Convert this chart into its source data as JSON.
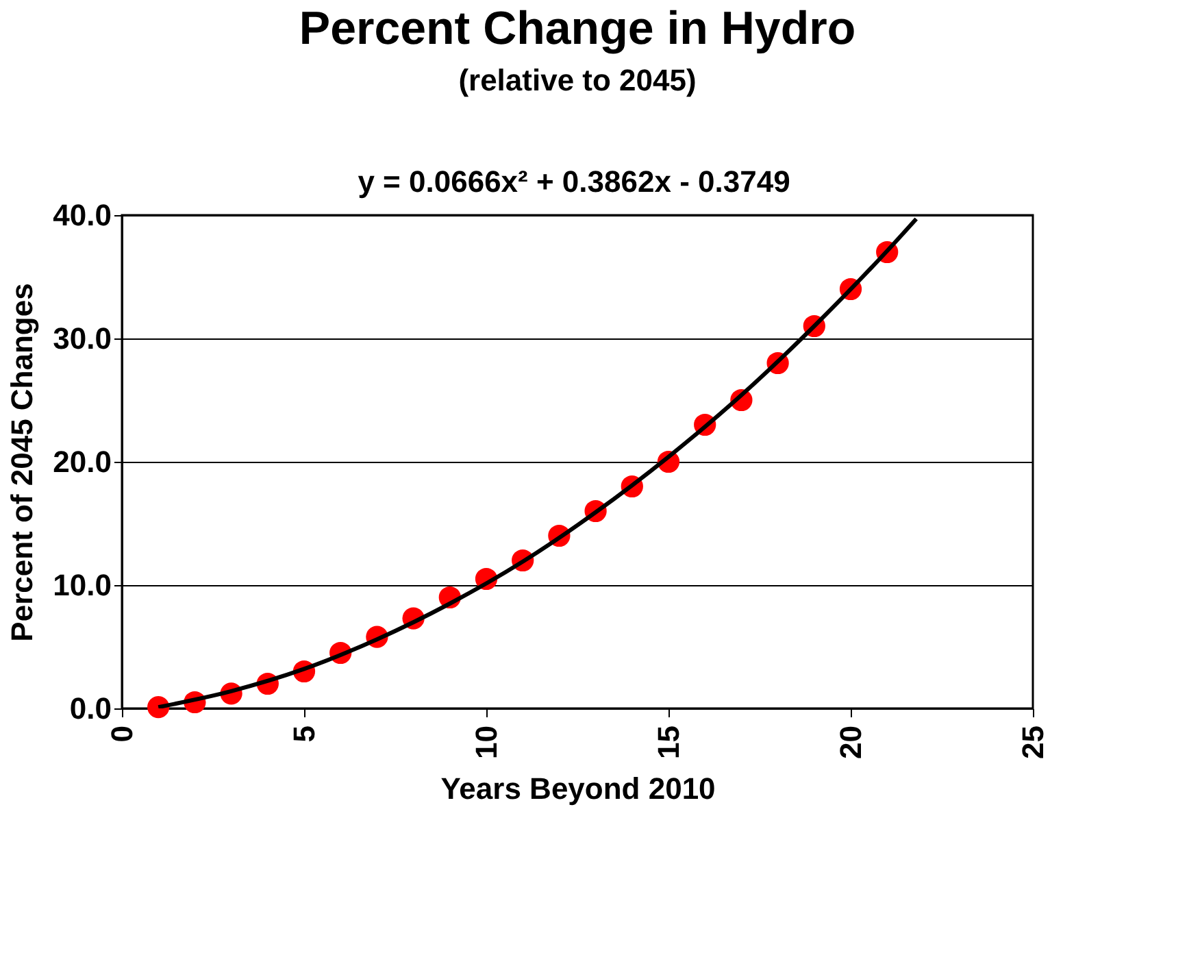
{
  "chart_data": {
    "type": "scatter",
    "title": "Percent Change in Hydro",
    "subtitle": "(relative to 2045)",
    "annotations": [
      "y = 0.0666x² + 0.3862x - 0.3749"
    ],
    "xlabel": "Years Beyond 2010",
    "ylabel": "Percent of 2045 Changes",
    "xlim": [
      0,
      25
    ],
    "xticks": [
      0,
      5,
      10,
      15,
      20,
      25
    ],
    "ylim": [
      0,
      40
    ],
    "yticks": [
      {
        "value": 0,
        "label": "0.0"
      },
      {
        "value": 10,
        "label": "10.0"
      },
      {
        "value": 20,
        "label": "20.0"
      },
      {
        "value": 30,
        "label": "30.0"
      },
      {
        "value": 40,
        "label": "40.0"
      }
    ],
    "grid": "y",
    "series": [
      {
        "marker": "circle",
        "color": "#ff0000",
        "x": [
          1,
          2,
          3,
          4,
          5,
          6,
          7,
          8,
          9,
          10,
          11,
          12,
          13,
          14,
          15,
          16,
          17,
          18,
          19,
          20,
          21
        ],
        "values": [
          0.1,
          0.5,
          1.2,
          2.0,
          3.0,
          4.5,
          5.8,
          7.3,
          9.0,
          10.5,
          12.0,
          14.0,
          16.0,
          18.0,
          20.0,
          23.0,
          25.0,
          28.0,
          31.0,
          34.0,
          37.0
        ]
      },
      {
        "type": "line",
        "marker": "none",
        "color": "#000000",
        "x": [
          1,
          3,
          5,
          7,
          9,
          11,
          13,
          15,
          17,
          19,
          21,
          21.8
        ],
        "values": [
          0.1,
          1.4,
          3.2,
          5.6,
          8.5,
          11.9,
          15.9,
          20.4,
          25.4,
          31.0,
          37.1,
          39.7
        ]
      }
    ]
  }
}
